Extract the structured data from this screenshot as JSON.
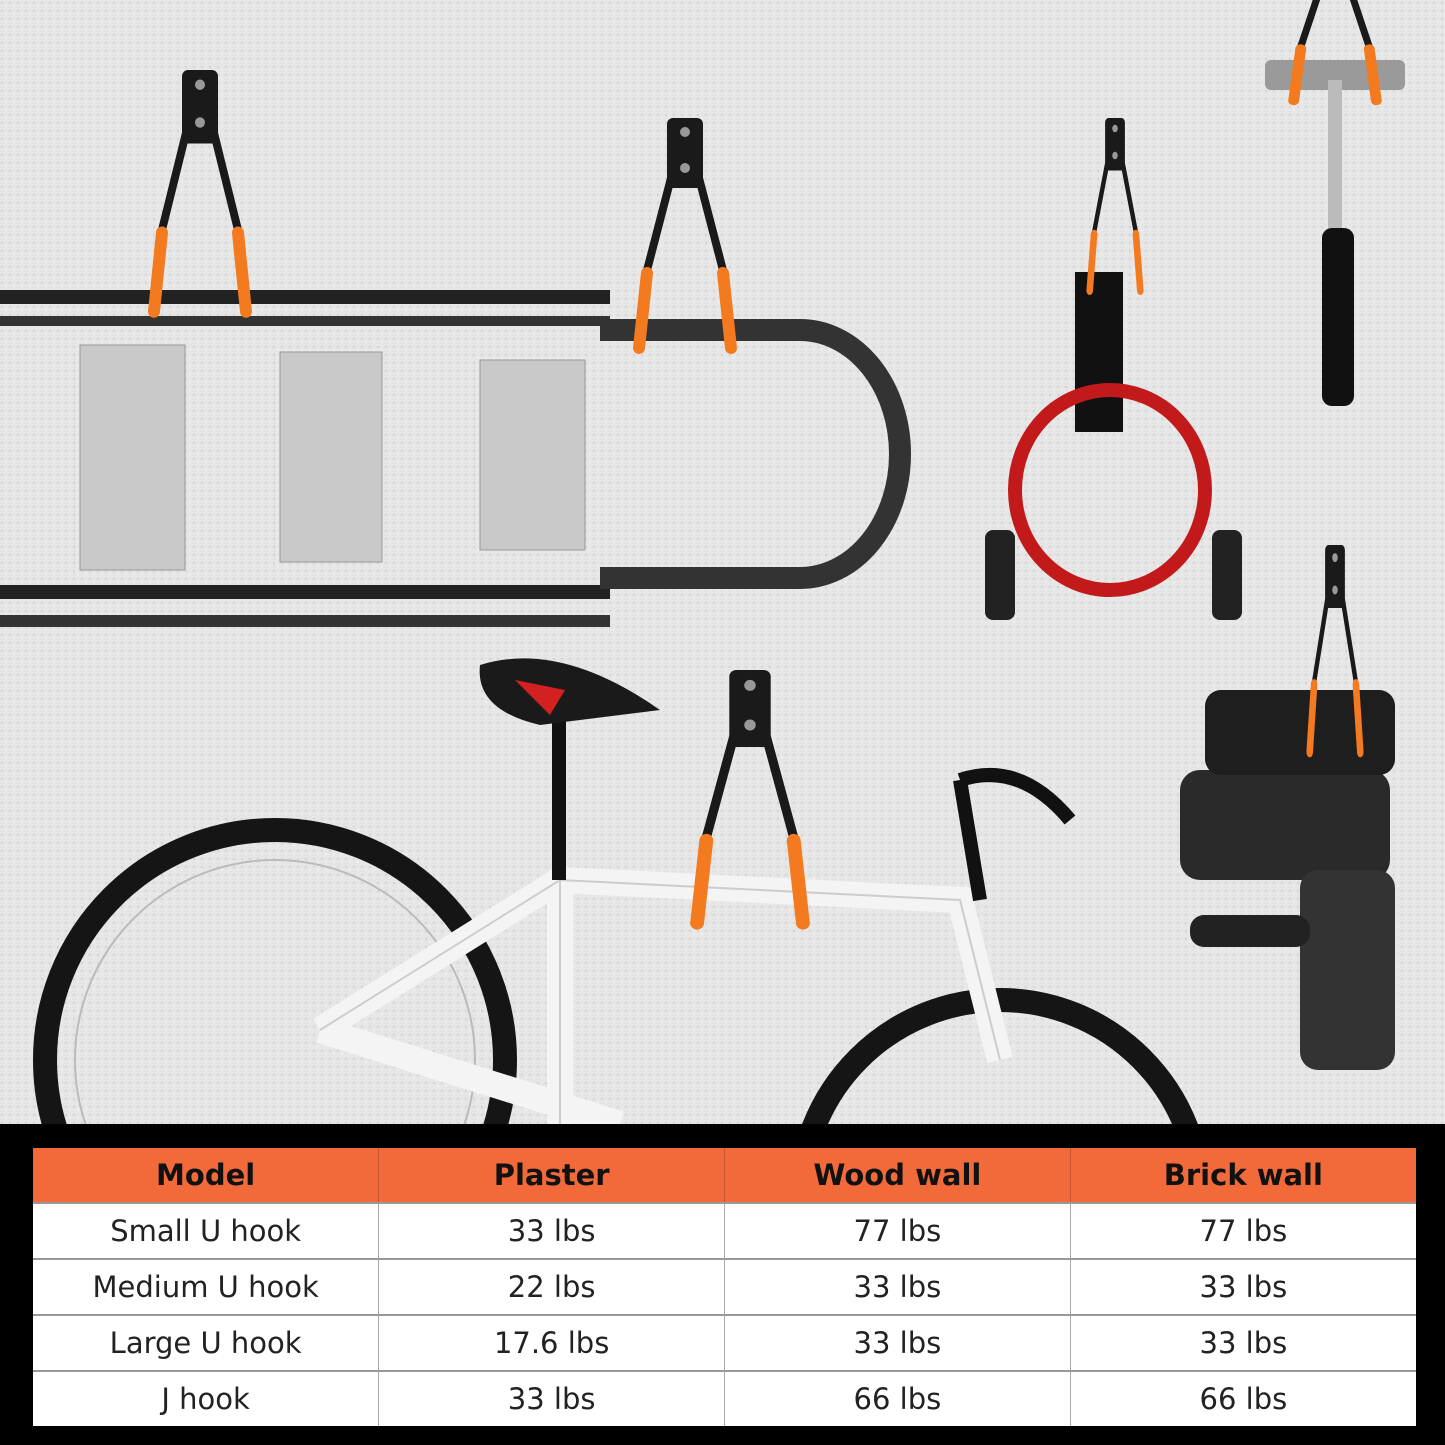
{
  "colors": {
    "header_bg": "#f26a3a",
    "hook_accent": "#f47a20",
    "wall": "#e4e4e4",
    "backdrop": "#000000"
  },
  "table": {
    "headers": [
      "Model",
      "Plaster",
      "Wood wall",
      "Brick wall"
    ],
    "rows": [
      [
        "Small U hook",
        "33 lbs",
        "77 lbs",
        "77 lbs"
      ],
      [
        "Medium U hook",
        "22 lbs",
        "33 lbs",
        "33 lbs"
      ],
      [
        "Large U hook",
        "17.6 lbs",
        "33 lbs",
        "33 lbs"
      ],
      [
        "J hook",
        "33 lbs",
        "66 lbs",
        "66 lbs"
      ]
    ]
  }
}
